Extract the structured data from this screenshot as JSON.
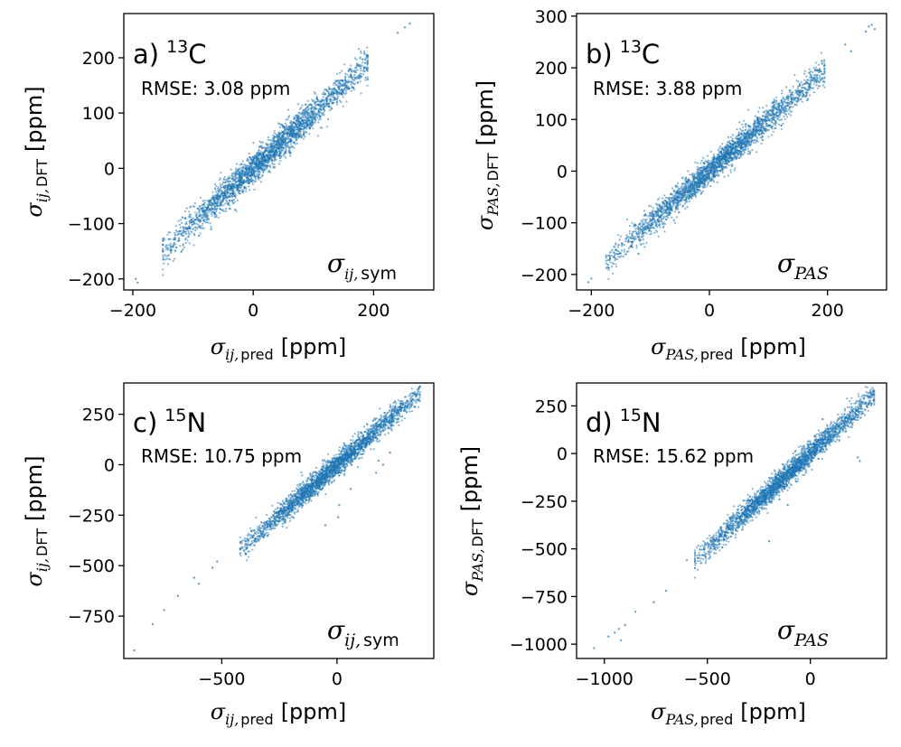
{
  "figure": {
    "point_color": "#1f77b4"
  },
  "chart_data": [
    {
      "id": "a",
      "type": "scatter",
      "panel_label": "a)",
      "isotope_mass": "13",
      "isotope_symbol": "C",
      "rmse_text": "RMSE: 3.08 ppm",
      "corner_symbol": "σ",
      "corner_sub": "ij,",
      "corner_sub2": "sym",
      "xlabel": {
        "symbol": "σ",
        "sub_italic": "ij,",
        "sub": "pred",
        "unit": "[ppm]"
      },
      "ylabel": {
        "symbol": "σ",
        "sub_italic": "ij,",
        "sub": "DFT",
        "unit": "[ppm]"
      },
      "xlim": [
        -215,
        300
      ],
      "ylim": [
        -220,
        280
      ],
      "xticks": [
        -200,
        0,
        200
      ],
      "xtick_labels": [
        "−200",
        "0",
        "200"
      ],
      "yticks": [
        -200,
        -100,
        0,
        100,
        200
      ],
      "ytick_labels": [
        "−200",
        "−100",
        "0",
        "100",
        "200"
      ],
      "trend": {
        "x": [
          -150,
          190
        ],
        "slope": 1.0,
        "spread": 14
      },
      "outliers": [
        [
          -195,
          -200
        ],
        [
          -192,
          -207
        ],
        [
          260,
          262
        ],
        [
          252,
          255
        ],
        [
          -90,
          -122
        ],
        [
          -70,
          -110
        ],
        [
          130,
          108
        ],
        [
          -30,
          -75
        ],
        [
          240,
          245
        ],
        [
          -150,
          -138
        ]
      ]
    },
    {
      "id": "b",
      "type": "scatter",
      "panel_label": "b)",
      "isotope_mass": "13",
      "isotope_symbol": "C",
      "rmse_text": "RMSE: 3.88 ppm",
      "corner_symbol": "σ",
      "corner_sub": "PAS",
      "corner_sub2": "",
      "xlabel": {
        "symbol": "σ",
        "sub_italic": "PAS,",
        "sub": "pred",
        "unit": "[ppm]"
      },
      "ylabel": {
        "symbol": "σ",
        "sub_italic": "PAS,",
        "sub": "DFT",
        "unit": "[ppm]"
      },
      "xlim": [
        -225,
        300
      ],
      "ylim": [
        -230,
        305
      ],
      "xticks": [
        -200,
        0,
        200
      ],
      "xtick_labels": [
        "−200",
        "0",
        "200"
      ],
      "yticks": [
        -200,
        -100,
        0,
        100,
        200,
        300
      ],
      "ytick_labels": [
        "−200",
        "−100",
        "0",
        "100",
        "200",
        "300"
      ],
      "trend": {
        "x": [
          -175,
          195
        ],
        "slope": 1.0,
        "spread": 13
      },
      "outliers": [
        [
          -205,
          -215
        ],
        [
          -200,
          -208
        ],
        [
          275,
          283
        ],
        [
          280,
          275
        ],
        [
          270,
          280
        ],
        [
          240,
          232
        ],
        [
          230,
          245
        ],
        [
          -120,
          -160
        ],
        [
          -60,
          -95
        ],
        [
          90,
          60
        ],
        [
          265,
          270
        ]
      ]
    },
    {
      "id": "c",
      "type": "scatter",
      "panel_label": "c)",
      "isotope_mass": "15",
      "isotope_symbol": "N",
      "rmse_text": "RMSE: 10.75 ppm",
      "corner_symbol": "σ",
      "corner_sub": "ij,",
      "corner_sub2": "sym",
      "xlabel": {
        "symbol": "σ",
        "sub_italic": "ij,",
        "sub": "pred",
        "unit": "[ppm]"
      },
      "ylabel": {
        "symbol": "σ",
        "sub_italic": "ij,",
        "sub": "DFT",
        "unit": "[ppm]"
      },
      "xlim": [
        -925,
        420
      ],
      "ylim": [
        -960,
        405
      ],
      "xticks": [
        -500,
        0
      ],
      "xtick_labels": [
        "−500",
        "0"
      ],
      "yticks": [
        -750,
        -500,
        -250,
        0,
        250
      ],
      "ytick_labels": [
        "−750",
        "−500",
        "−250",
        "0",
        "250"
      ],
      "trend": {
        "x": [
          -420,
          360
        ],
        "slope": 1.0,
        "spread": 28
      },
      "outliers": [
        [
          -880,
          -920
        ],
        [
          -800,
          -790
        ],
        [
          -750,
          -720
        ],
        [
          -690,
          -650
        ],
        [
          -620,
          -560
        ],
        [
          -600,
          -590
        ],
        [
          -520,
          -480
        ],
        [
          -540,
          -510
        ],
        [
          10,
          -200
        ],
        [
          5,
          -260
        ],
        [
          180,
          20
        ],
        [
          200,
          0
        ],
        [
          -50,
          -300
        ],
        [
          170,
          -40
        ],
        [
          230,
          60
        ],
        [
          60,
          -120
        ]
      ]
    },
    {
      "id": "d",
      "type": "scatter",
      "panel_label": "d)",
      "isotope_mass": "15",
      "isotope_symbol": "N",
      "rmse_text": "RMSE: 15.62 ppm",
      "corner_symbol": "σ",
      "corner_sub": "PAS",
      "corner_sub2": "",
      "xlabel": {
        "symbol": "σ",
        "sub_italic": "PAS,",
        "sub": "pred",
        "unit": "[ppm]"
      },
      "ylabel": {
        "symbol": "σ",
        "sub_italic": "PAS,",
        "sub": "DFT",
        "unit": "[ppm]"
      },
      "xlim": [
        -1135,
        370
      ],
      "ylim": [
        -1075,
        370
      ],
      "xticks": [
        -1000,
        -500,
        0
      ],
      "xtick_labels": [
        "−1000",
        "−500",
        "0"
      ],
      "yticks": [
        -1000,
        -750,
        -500,
        -250,
        0,
        250
      ],
      "ytick_labels": [
        "−1000",
        "−750",
        "−500",
        "−250",
        "0",
        "250"
      ],
      "trend": {
        "x": [
          -560,
          310
        ],
        "slope": 1.0,
        "spread": 30
      },
      "outliers": [
        [
          -1050,
          -1020
        ],
        [
          -980,
          -960
        ],
        [
          -950,
          -940
        ],
        [
          -930,
          -920
        ],
        [
          -900,
          -900
        ],
        [
          -850,
          -830
        ],
        [
          -760,
          -780
        ],
        [
          -700,
          -720
        ],
        [
          -920,
          -980
        ],
        [
          -600,
          -560
        ],
        [
          -150,
          -240
        ],
        [
          -110,
          -270
        ],
        [
          230,
          -20
        ],
        [
          240,
          -40
        ],
        [
          -200,
          -460
        ],
        [
          60,
          180
        ]
      ]
    }
  ]
}
